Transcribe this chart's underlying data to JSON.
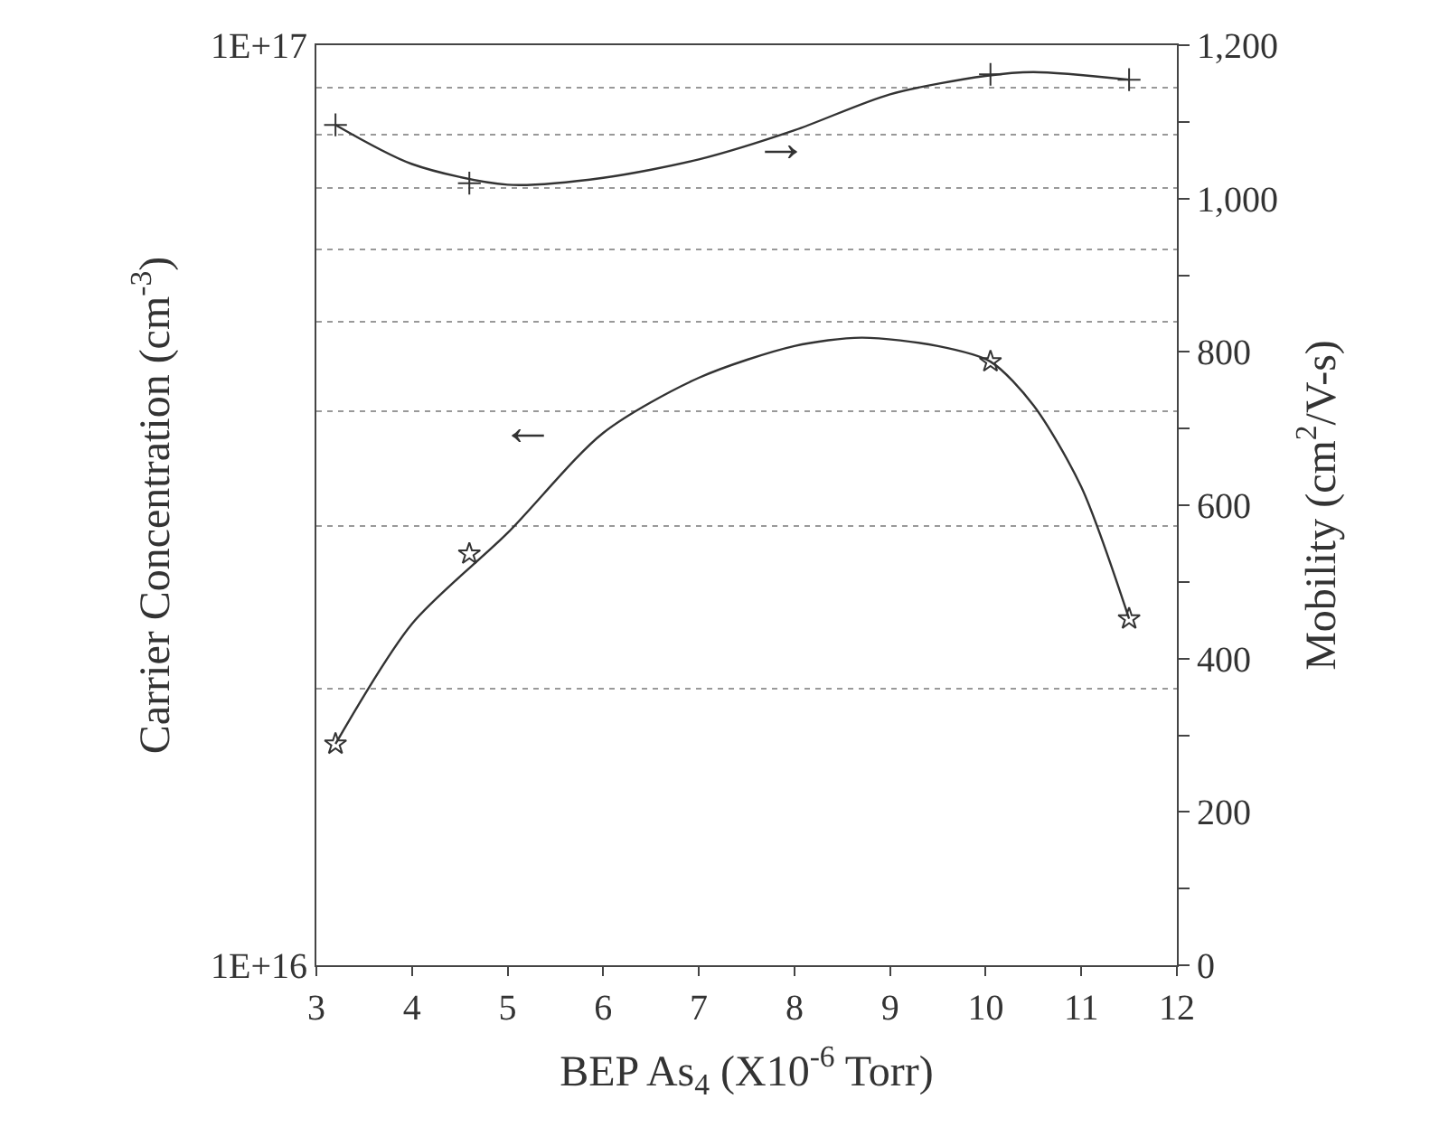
{
  "chart_data": {
    "type": "scatter",
    "xlabel": "BEP As$_{4}$ (X10$^{-6}$ Torr)",
    "ylabel": "Carrier Concentration (cm$^{-3}$)",
    "y2label": "Mobility (cm$^{2}$/V-s)",
    "x": [
      3.2,
      4.6,
      10.05,
      11.5
    ],
    "series": [
      {
        "color": "#333333",
        "marker": "star",
        "values": [
          1.74e+16,
          2.8e+16,
          4.53e+16,
          2.38e+16
        ]
      },
      {
        "type": "line",
        "color": "#333333",
        "marker": "none",
        "x": [
          3.2,
          4,
          5,
          6,
          7,
          8,
          8.7,
          9.5,
          10.05,
          10.5,
          11,
          11.5
        ],
        "values": [
          1.74e+16,
          2.35e+16,
          2.95e+16,
          3.79e+16,
          4.35e+16,
          4.71e+16,
          4.81e+16,
          4.71e+16,
          4.53e+16,
          4.06e+16,
          3.31e+16,
          2.38e+16
        ]
      },
      {
        "axis": "y2",
        "color": "#333333",
        "marker": "cross",
        "values": [
          1096,
          1020,
          1162,
          1155
        ]
      },
      {
        "type": "line",
        "axis": "y2",
        "color": "#333333",
        "marker": "none",
        "x": [
          3.2,
          4,
          5,
          6,
          7,
          8,
          9,
          10,
          10.5,
          11.5
        ],
        "values": [
          1096,
          1045,
          1018,
          1027,
          1051,
          1089,
          1136,
          1160,
          1165,
          1155
        ]
      }
    ],
    "annotations": [
      "←",
      "→"
    ],
    "xlim": [
      3,
      12
    ],
    "xticks": [
      3,
      4,
      5,
      6,
      7,
      8,
      9,
      10,
      11,
      12
    ],
    "log": "y",
    "ylim": [
      1e+16,
      1e+17
    ],
    "yticks": [
      {
        "value": 1e+16,
        "label": "1E+16"
      },
      {
        "value": 2e+16,
        "label": null
      },
      {
        "value": 3e+16,
        "label": null
      },
      {
        "value": 4e+16,
        "label": null
      },
      {
        "value": 5e+16,
        "label": null
      },
      {
        "value": 6e+16,
        "label": null
      },
      {
        "value": 7e+16,
        "label": null
      },
      {
        "value": 8e+16,
        "label": null
      },
      {
        "value": 9e+16,
        "label": null
      },
      {
        "value": 1e+17,
        "label": "1E+17"
      }
    ],
    "y2lim": [
      0,
      1200
    ],
    "y2ticks": [
      0,
      {
        "value": 100,
        "label": null
      },
      200,
      {
        "value": 300,
        "label": null
      },
      400,
      {
        "value": 500,
        "label": null
      },
      600,
      {
        "value": 700,
        "label": null
      },
      800,
      {
        "value": 900,
        "label": null
      },
      {
        "value": 1000,
        "label": "1,000"
      },
      {
        "value": 1100,
        "label": null
      },
      {
        "value": 1200,
        "label": "1,200"
      }
    ],
    "grid": "y",
    "line_style": "solid"
  }
}
